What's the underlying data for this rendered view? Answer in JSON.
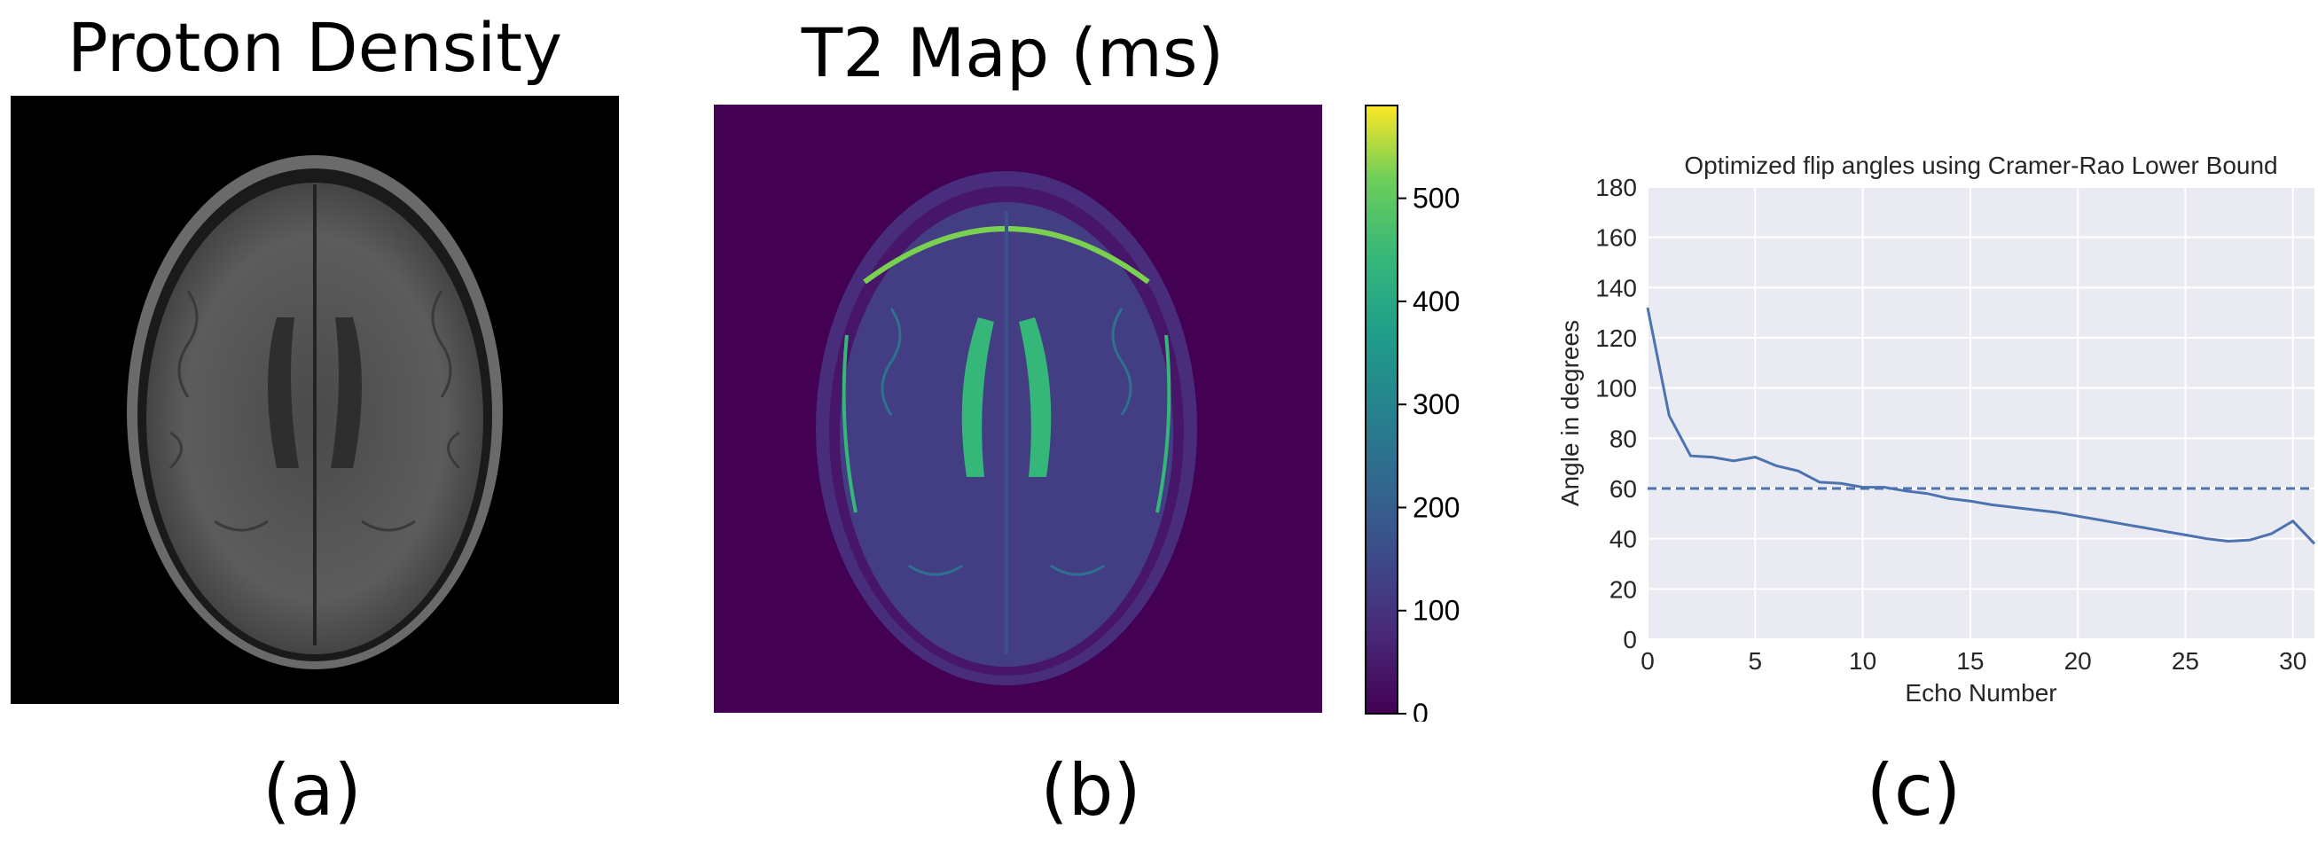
{
  "panels": {
    "a": {
      "title": "Proton Density",
      "label": "(a)"
    },
    "b": {
      "title": "T2 Map (ms)",
      "label": "(b)",
      "colorbar": {
        "ticks": [
          "0",
          "100",
          "200",
          "300",
          "400",
          "500"
        ],
        "range": [
          0,
          590
        ],
        "colormap": "viridis"
      }
    },
    "c": {
      "label": "(c)"
    }
  },
  "chart_data": {
    "type": "line",
    "title": "Optimized flip angles using Cramer-Rao Lower Bound",
    "xlabel": "Echo Number",
    "ylabel": "Angle in degrees",
    "xlim": [
      0,
      31
    ],
    "ylim": [
      0,
      180
    ],
    "xticks": [
      0,
      5,
      10,
      15,
      20,
      25,
      30
    ],
    "yticks": [
      0,
      20,
      40,
      60,
      80,
      100,
      120,
      140,
      160,
      180
    ],
    "grid": true,
    "background": "#eaeaf2",
    "line_color": "#4c72b0",
    "series": [
      {
        "x": [
          0,
          1,
          2,
          3,
          4,
          5,
          6,
          7,
          8,
          9,
          10,
          11,
          12,
          13,
          14,
          15,
          16,
          17,
          18,
          19,
          20,
          21,
          22,
          23,
          24,
          25,
          26,
          27,
          28,
          29,
          30,
          31
        ],
        "values": [
          132,
          89,
          73,
          72.5,
          71,
          72.5,
          69,
          67,
          62.5,
          62,
          60.5,
          60.5,
          59,
          58,
          56,
          55,
          53.5,
          52.5,
          51.5,
          50.5,
          49,
          47.5,
          46,
          44.5,
          43,
          41.5,
          40,
          39,
          39.5,
          42,
          47,
          38
        ]
      }
    ],
    "reference_line": {
      "y": 60,
      "style": "dashed"
    }
  }
}
